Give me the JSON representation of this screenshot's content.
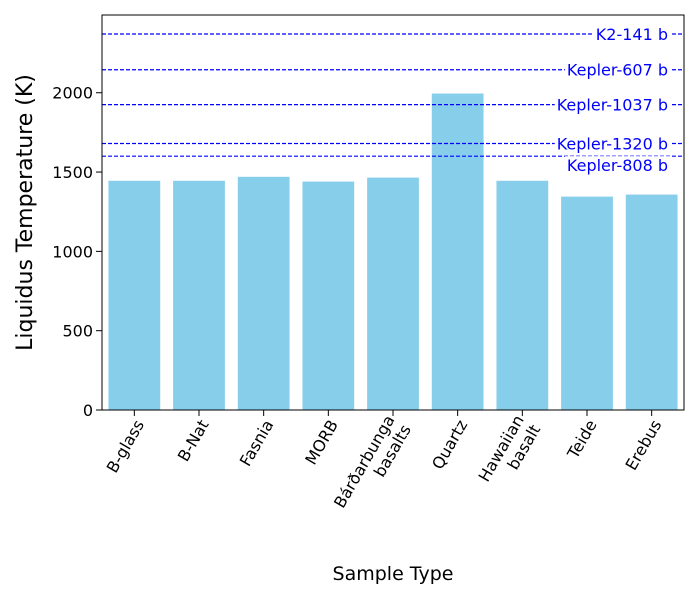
{
  "chart_data": {
    "type": "bar",
    "xlabel": "Sample Type",
    "ylabel": "Liquidus Temperature (K)",
    "ylim": [
      0,
      2490
    ],
    "yticks": [
      0,
      500,
      1000,
      1500,
      2000
    ],
    "categories": [
      [
        "B-glass"
      ],
      [
        "B-Nat"
      ],
      [
        "Fasnia"
      ],
      [
        "MORB"
      ],
      [
        "Bárðarbunga",
        "basalts"
      ],
      [
        "Quartz"
      ],
      [
        "Hawaiian",
        "basalt"
      ],
      [
        "Teide"
      ],
      [
        "Erebus"
      ]
    ],
    "values": [
      1445,
      1445,
      1470,
      1440,
      1465,
      1995,
      1445,
      1345,
      1358
    ],
    "reference_lines": [
      {
        "label": "K2-141 b",
        "value": 2370
      },
      {
        "label": "Kepler-607 b",
        "value": 2145
      },
      {
        "label": "Kepler-1037 b",
        "value": 1925
      },
      {
        "label": "Kepler-1320 b",
        "value": 1680
      },
      {
        "label": "Kepler-808 b",
        "value": 1600
      }
    ],
    "bar_color": "#87ceeb",
    "reference_color": "#0000ff",
    "grid": false
  }
}
